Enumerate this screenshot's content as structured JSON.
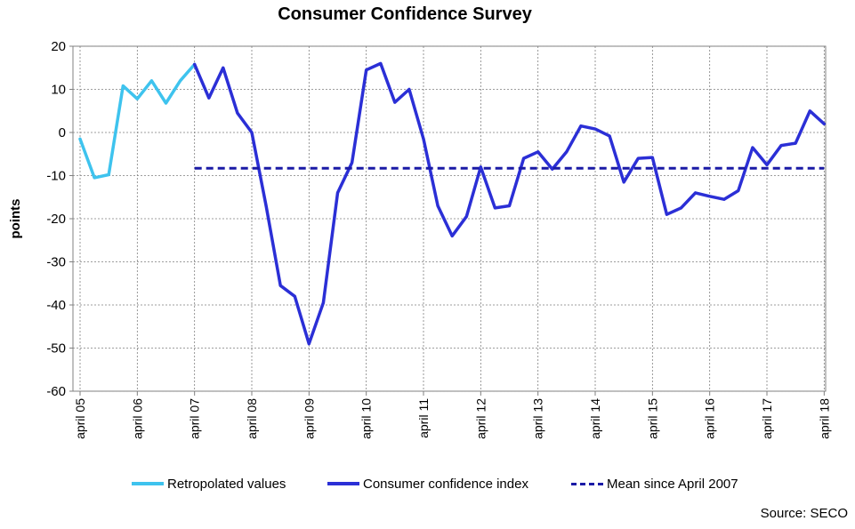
{
  "chart_data": {
    "type": "line",
    "title": "Consumer Confidence Survey",
    "ylabel": "points",
    "xlabel": "",
    "ylim": [
      -60,
      20
    ],
    "yticks": [
      20,
      10,
      0,
      -10,
      -20,
      -30,
      -40,
      -50,
      -60
    ],
    "x_ticks": [
      "april 05",
      "april 06",
      "april 07",
      "april 08",
      "april 09",
      "april 10",
      "april 11",
      "april 12",
      "april 13",
      "april 14",
      "april 15",
      "april 16",
      "april 17",
      "april 18"
    ],
    "grid": true,
    "legend_position": "bottom",
    "series": [
      {
        "name": "Retropolated values",
        "color": "#3ec3ee",
        "style": "solid",
        "points": [
          [
            "2005-04",
            -1.5
          ],
          [
            "2005-07",
            -10.5
          ],
          [
            "2005-10",
            -9.8
          ],
          [
            "2006-01",
            10.8
          ],
          [
            "2006-04",
            7.8
          ],
          [
            "2006-07",
            12.0
          ],
          [
            "2006-10",
            6.8
          ],
          [
            "2007-01",
            12.0
          ],
          [
            "2007-04",
            15.8
          ]
        ]
      },
      {
        "name": "Consumer confidence index",
        "color": "#2b2fd6",
        "style": "solid",
        "points": [
          [
            "2007-04",
            15.8
          ],
          [
            "2007-07",
            8.0
          ],
          [
            "2007-10",
            15.0
          ],
          [
            "2008-01",
            4.5
          ],
          [
            "2008-04",
            0.0
          ],
          [
            "2008-07",
            -17.0
          ],
          [
            "2008-10",
            -35.5
          ],
          [
            "2009-01",
            -38.0
          ],
          [
            "2009-04",
            -49.0
          ],
          [
            "2009-07",
            -39.5
          ],
          [
            "2009-10",
            -14.0
          ],
          [
            "2010-01",
            -7.0
          ],
          [
            "2010-04",
            14.5
          ],
          [
            "2010-07",
            16.0
          ],
          [
            "2010-10",
            7.0
          ],
          [
            "2011-01",
            10.0
          ],
          [
            "2011-04",
            -1.5
          ],
          [
            "2011-07",
            -17.0
          ],
          [
            "2011-10",
            -24.0
          ],
          [
            "2012-01",
            -19.5
          ],
          [
            "2012-04",
            -8.0
          ],
          [
            "2012-07",
            -17.5
          ],
          [
            "2012-10",
            -17.0
          ],
          [
            "2013-01",
            -6.0
          ],
          [
            "2013-04",
            -4.5
          ],
          [
            "2013-07",
            -8.5
          ],
          [
            "2013-10",
            -4.5
          ],
          [
            "2014-01",
            1.5
          ],
          [
            "2014-04",
            0.8
          ],
          [
            "2014-07",
            -0.8
          ],
          [
            "2014-10",
            -11.5
          ],
          [
            "2015-01",
            -6.0
          ],
          [
            "2015-04",
            -5.8
          ],
          [
            "2015-07",
            -19.0
          ],
          [
            "2015-10",
            -17.5
          ],
          [
            "2016-01",
            -14.0
          ],
          [
            "2016-04",
            -14.8
          ],
          [
            "2016-07",
            -15.5
          ],
          [
            "2016-10",
            -13.5
          ],
          [
            "2017-01",
            -3.5
          ],
          [
            "2017-04",
            -7.5
          ],
          [
            "2017-07",
            -3.0
          ],
          [
            "2017-10",
            -2.5
          ],
          [
            "2018-01",
            5.0
          ],
          [
            "2018-04",
            2.0
          ]
        ]
      },
      {
        "name": "Mean since April 2007",
        "color": "#1a1aa6",
        "style": "dashed",
        "points": [
          [
            "2007-04",
            -8.3
          ],
          [
            "2018-04",
            -8.3
          ]
        ]
      }
    ],
    "source": "Source:  SECO"
  }
}
